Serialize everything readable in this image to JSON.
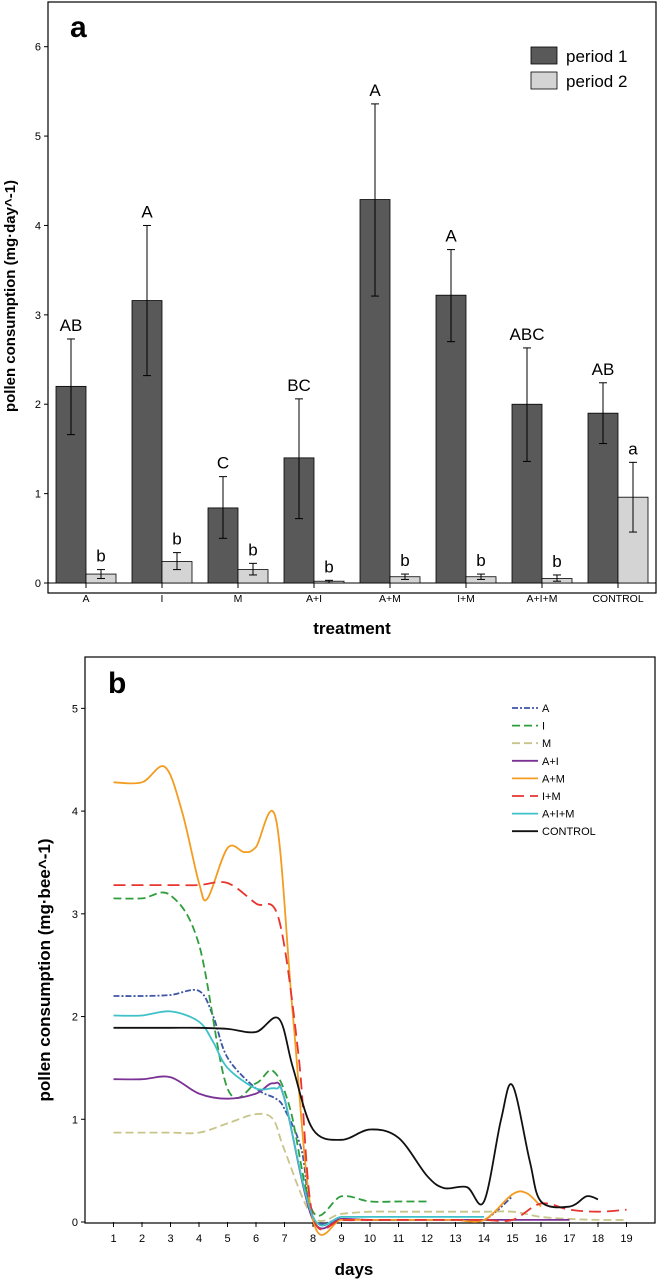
{
  "chart_data": [
    {
      "panel_label": "a",
      "type": "bar",
      "xlabel": "treatment",
      "ylabel": "pollen consumption (mg·day^-1)",
      "ylim": [
        0,
        6.5
      ],
      "yticks": [
        "0",
        "1",
        "2",
        "3",
        "4",
        "5",
        "6"
      ],
      "categories": [
        "A",
        "I",
        "M",
        "A+I",
        "A+M",
        "I+M",
        "A+I+M",
        "CONTROL"
      ],
      "legend_position": "top-right",
      "series": [
        {
          "name": "period 1",
          "color": "#595959",
          "values": [
            2.2,
            3.16,
            0.84,
            1.4,
            4.29,
            3.22,
            2.0,
            1.9
          ],
          "err_low": [
            1.66,
            2.32,
            0.5,
            0.72,
            3.21,
            2.7,
            1.36,
            1.56
          ],
          "err_high": [
            2.73,
            4.0,
            1.19,
            2.06,
            5.36,
            3.73,
            2.63,
            2.24
          ],
          "letters": [
            "AB",
            "A",
            "C",
            "BC",
            "A",
            "A",
            "ABC",
            "AB"
          ]
        },
        {
          "name": "period 2",
          "color": "#d4d4d4",
          "values": [
            0.1,
            0.24,
            0.15,
            0.02,
            0.07,
            0.07,
            0.05,
            0.96
          ],
          "err_low": [
            0.05,
            0.15,
            0.09,
            0.0,
            0.04,
            0.04,
            0.02,
            0.57
          ],
          "err_high": [
            0.15,
            0.34,
            0.22,
            0.03,
            0.1,
            0.1,
            0.09,
            1.35
          ],
          "letters": [
            "b",
            "b",
            "b",
            "b",
            "b",
            "b",
            "b",
            "a"
          ]
        }
      ]
    },
    {
      "panel_label": "b",
      "type": "line",
      "xlabel": "days",
      "ylabel": "pollen consumption (mg·bee^-1)",
      "ylim": [
        0,
        5.5
      ],
      "xlim": [
        0,
        20
      ],
      "yticks": [
        "0",
        "1",
        "2",
        "3",
        "4",
        "5"
      ],
      "xticks": [
        "1",
        "2",
        "3",
        "4",
        "5",
        "6",
        "7",
        "8",
        "9",
        "10",
        "11",
        "12",
        "13",
        "14",
        "15",
        "16",
        "17",
        "18",
        "19"
      ],
      "legend_position": "top-right",
      "series": [
        {
          "name": "A",
          "color": "#3f55a6",
          "dash": "6,2,2,2",
          "x": [
            1,
            2,
            3,
            4,
            4.5,
            5,
            6,
            6.7,
            7,
            7.6,
            8,
            9,
            10,
            11,
            12,
            13,
            14,
            15
          ],
          "y": [
            2.2,
            2.2,
            2.21,
            2.25,
            2.0,
            1.6,
            1.3,
            1.2,
            1.1,
            0.7,
            0.03,
            0.03,
            0.02,
            0.02,
            0.02,
            0.02,
            0.02,
            0.25
          ]
        },
        {
          "name": "I",
          "color": "#2e9e3c",
          "dash": "8,4",
          "x": [
            1,
            2,
            3,
            4,
            5,
            6,
            6.6,
            7.2,
            8,
            9,
            10,
            11,
            12
          ],
          "y": [
            3.15,
            3.15,
            3.18,
            2.7,
            1.3,
            1.35,
            1.47,
            1.1,
            0.1,
            0.25,
            0.2,
            0.2,
            0.2
          ]
        },
        {
          "name": "M",
          "color": "#c8c48a",
          "dash": "8,4",
          "x": [
            1,
            2,
            3,
            4,
            5,
            6,
            6.6,
            7,
            8,
            9,
            10,
            11,
            12,
            13,
            14,
            15,
            16,
            17,
            18,
            19
          ],
          "y": [
            0.87,
            0.87,
            0.87,
            0.87,
            0.96,
            1.05,
            1.0,
            0.7,
            0.05,
            0.08,
            0.1,
            0.1,
            0.1,
            0.1,
            0.1,
            0.1,
            0.05,
            0.03,
            0.02,
            0.02
          ]
        },
        {
          "name": "A+I",
          "color": "#7b3294",
          "dash": "",
          "x": [
            1,
            2,
            3,
            4,
            5,
            6,
            6.6,
            7,
            8,
            9,
            10,
            11,
            12,
            13,
            14,
            15,
            16,
            17
          ],
          "y": [
            1.39,
            1.39,
            1.41,
            1.25,
            1.2,
            1.25,
            1.35,
            1.2,
            0.02,
            0.03,
            0.02,
            0.02,
            0.02,
            0.02,
            0.02,
            0.02,
            0.02,
            0.02
          ]
        },
        {
          "name": "A+M",
          "color": "#f39c21",
          "dash": "",
          "x": [
            1,
            2,
            2.8,
            3.4,
            4,
            4.3,
            5,
            5.6,
            6,
            6.7,
            7.3,
            8,
            9,
            10,
            11,
            12,
            13,
            14,
            15,
            15.5,
            16
          ],
          "y": [
            4.28,
            4.28,
            4.43,
            4.0,
            3.3,
            3.15,
            3.64,
            3.6,
            3.65,
            3.92,
            2.0,
            0.02,
            0.02,
            0.02,
            0.02,
            0.02,
            0.02,
            0.02,
            0.27,
            0.28,
            0.15
          ]
        },
        {
          "name": "I+M",
          "color": "#e8342f",
          "dash": "12,6",
          "x": [
            1,
            2,
            3,
            4,
            5,
            6,
            6.8,
            7.5,
            8,
            9,
            10,
            11,
            12,
            13,
            14,
            15,
            16,
            17,
            18,
            19
          ],
          "y": [
            3.28,
            3.28,
            3.28,
            3.28,
            3.3,
            3.1,
            2.95,
            1.6,
            0.05,
            0.02,
            0.02,
            0.02,
            0.02,
            0.02,
            0.02,
            0.02,
            0.18,
            0.12,
            0.1,
            0.12
          ]
        },
        {
          "name": "A+I+M",
          "color": "#3fc1c9",
          "dash": "",
          "x": [
            1,
            2,
            3,
            4,
            4.5,
            5,
            6,
            6.7,
            7,
            8,
            9,
            10,
            11,
            12,
            13,
            14
          ],
          "y": [
            2.01,
            2.01,
            2.05,
            1.95,
            1.75,
            1.5,
            1.3,
            1.3,
            1.2,
            0.05,
            0.05,
            0.05,
            0.05,
            0.05,
            0.05,
            0.05
          ]
        },
        {
          "name": "CONTROL",
          "color": "#111111",
          "dash": "",
          "x": [
            1,
            2,
            3,
            4,
            5,
            6,
            6.8,
            7.3,
            8,
            9,
            10,
            11,
            12,
            12.6,
            13.4,
            14,
            14.6,
            15,
            15.6,
            16,
            17,
            17.6,
            18
          ],
          "y": [
            1.89,
            1.89,
            1.89,
            1.89,
            1.88,
            1.85,
            1.98,
            1.5,
            0.9,
            0.8,
            0.9,
            0.82,
            0.45,
            0.33,
            0.34,
            0.2,
            1.0,
            1.33,
            0.6,
            0.2,
            0.15,
            0.25,
            0.22
          ]
        }
      ]
    }
  ]
}
